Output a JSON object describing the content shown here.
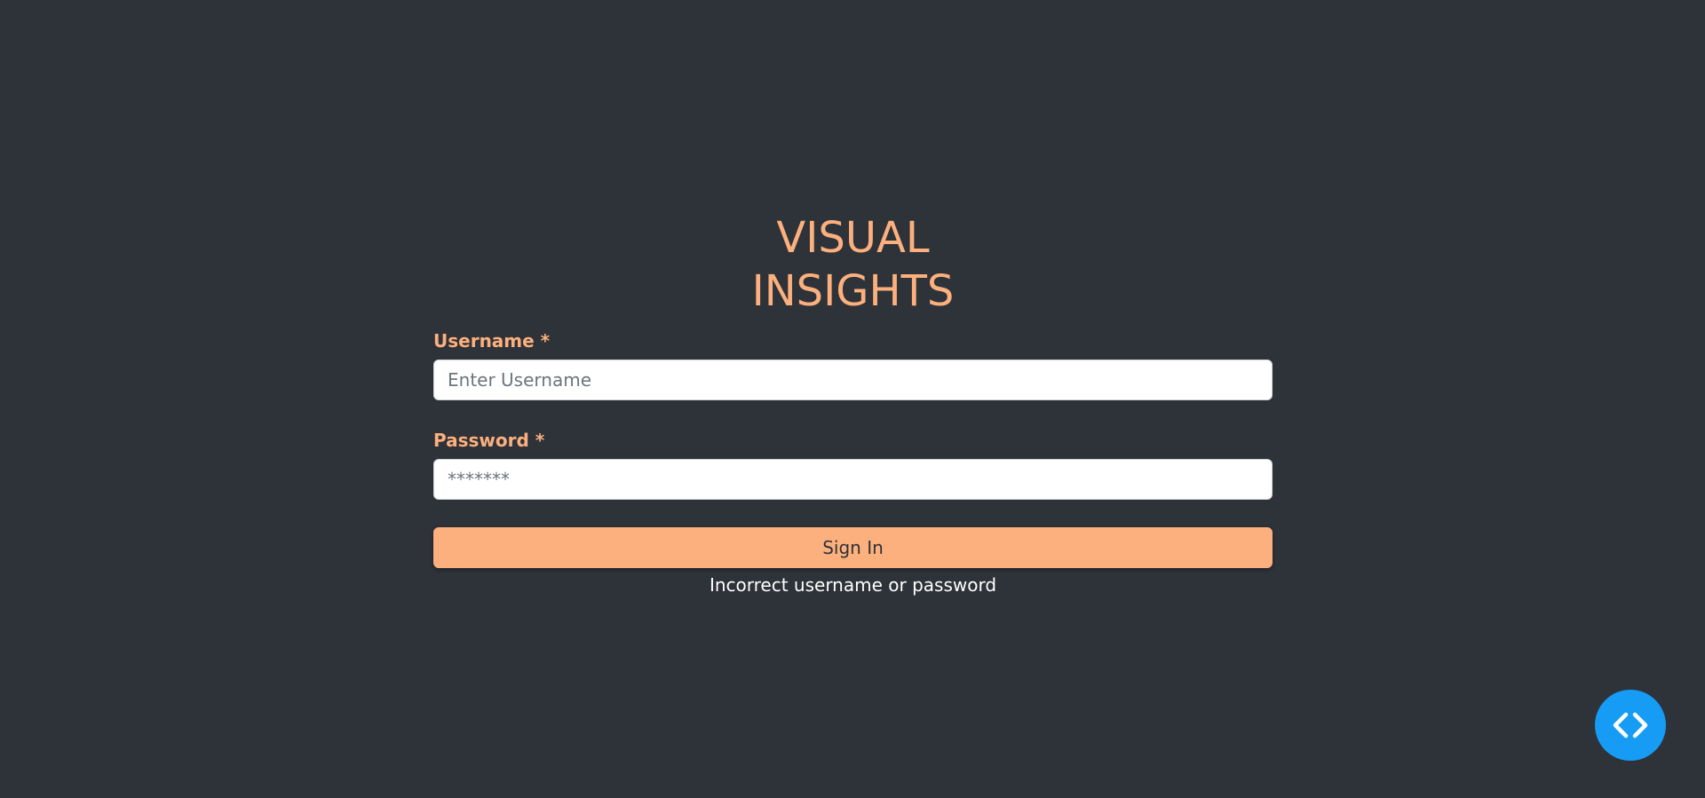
{
  "login": {
    "title_line1": "VISUAL",
    "title_line2": "INSIGHTS",
    "username": {
      "label": "Username *",
      "placeholder": "Enter Username",
      "value": ""
    },
    "password": {
      "label": "Password *",
      "placeholder": "*******",
      "value": ""
    },
    "signin_label": "Sign In",
    "error_message": "Incorrect username or password"
  },
  "dev_toggle": {
    "icon": "code-brackets-icon"
  },
  "colors": {
    "background": "#2e3239",
    "accent": "#fcb07d",
    "dev_toggle": "#169cf5",
    "error_text": "#ffffff"
  }
}
